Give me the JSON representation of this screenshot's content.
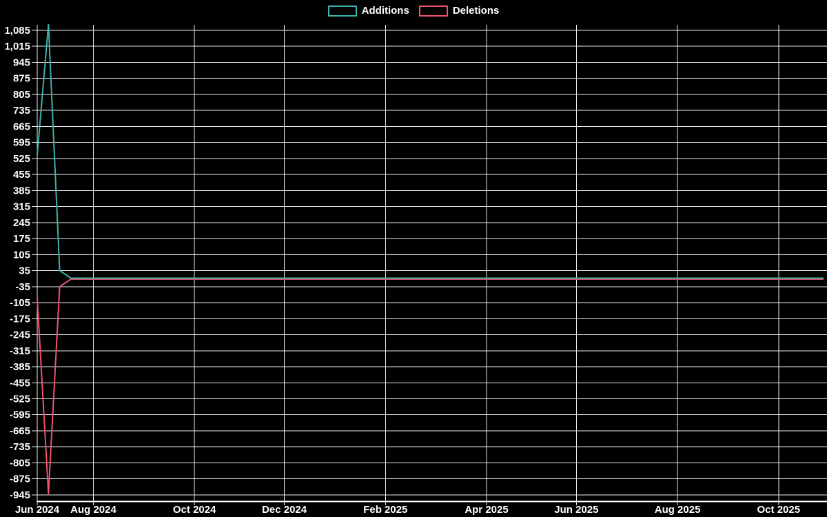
{
  "chart_data": {
    "type": "line",
    "title": "",
    "xlabel": "",
    "ylabel": "",
    "grid": true,
    "legend_position": "top-center",
    "background_color": "#000000",
    "grid_color": "#ffffff",
    "text_color": "#ffffff",
    "x_unit": "week",
    "x_tick_labels": [
      "Jun 2024",
      "Aug 2024",
      "Oct 2024",
      "Dec 2024",
      "Feb 2025",
      "Apr 2025",
      "Jun 2025",
      "Aug 2025",
      "Oct 2025"
    ],
    "x_tick_week_index": [
      0,
      5,
      14,
      22,
      31,
      40,
      48,
      57,
      66
    ],
    "y_tick_labels": [
      "1,085",
      "1,015",
      "945",
      "875",
      "805",
      "735",
      "665",
      "595",
      "525",
      "455",
      "385",
      "315",
      "245",
      "175",
      "105",
      "35",
      "-35",
      "-105",
      "-175",
      "-245",
      "-315",
      "-385",
      "-455",
      "-525",
      "-595",
      "-665",
      "-735",
      "-805",
      "-875",
      "-945"
    ],
    "y_tick_step": 70,
    "ylim": [
      -990,
      1125
    ],
    "series": [
      {
        "name": "Additions",
        "color": "#3db3ad",
        "values": [
          540,
          1110,
          35,
          2,
          2,
          2,
          2,
          2,
          2,
          2,
          2,
          2,
          2,
          2,
          2,
          2,
          2,
          2,
          2,
          2,
          2,
          2,
          2,
          2,
          2,
          2,
          2,
          2,
          2,
          2,
          2,
          2,
          2,
          2,
          2,
          2,
          2,
          2,
          2,
          2,
          2,
          2,
          2,
          2,
          2,
          2,
          2,
          2,
          2,
          2,
          2,
          2,
          2,
          2,
          2,
          2,
          2,
          2,
          2,
          2,
          2,
          2,
          2,
          2,
          2,
          2,
          2,
          2,
          2,
          2,
          2
        ]
      },
      {
        "name": "Deletions",
        "color": "#f0536f",
        "values": [
          -85,
          -940,
          -35,
          -2,
          -2,
          -2,
          -2,
          -2,
          -2,
          -2,
          -2,
          -2,
          -2,
          -2,
          -2,
          -2,
          -2,
          -2,
          -2,
          -2,
          -2,
          -2,
          -2,
          -2,
          -2,
          -2,
          -2,
          -2,
          -2,
          -2,
          -2,
          -2,
          -2,
          -2,
          -2,
          -2,
          -2,
          -2,
          -2,
          -2,
          -2,
          -2,
          -2,
          -2,
          -2,
          -2,
          -2,
          -2,
          -2,
          -2,
          -2,
          -2,
          -2,
          -2,
          -2,
          -2,
          -2,
          -2,
          -2,
          -2,
          -2,
          -2,
          -2,
          -2,
          -2,
          -2,
          -2,
          -2,
          -2,
          -2,
          -2
        ]
      }
    ]
  }
}
